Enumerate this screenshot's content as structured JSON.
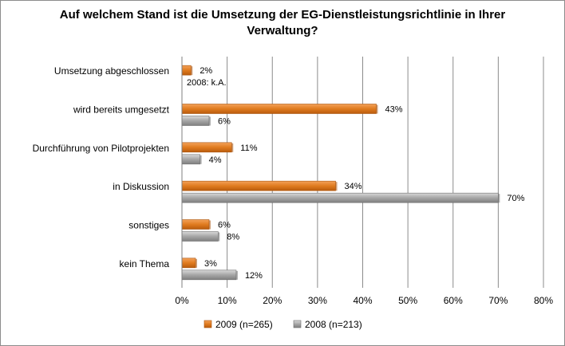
{
  "chart_data": {
    "type": "bar",
    "orientation": "horizontal",
    "title_lines": [
      "Auf welchem Stand ist die Umsetzung der EG-Dienstleistungsrichtlinie in Ihrer",
      "Verwaltung?"
    ],
    "categories": [
      "Umsetzung abgeschlossen",
      "wird bereits umgesetzt",
      "Durchführung von Pilotprojekten",
      "in Diskussion",
      "sonstiges",
      "kein Thema"
    ],
    "series": [
      {
        "name": "2009 (n=265)",
        "color": "#e07b1f",
        "values": [
          2,
          43,
          11,
          34,
          6,
          3
        ],
        "labels": [
          "2%",
          "43%",
          "11%",
          "34%",
          "6%",
          "3%"
        ]
      },
      {
        "name": "2008 (n=213)",
        "color": "#a6a6a6",
        "values": [
          null,
          6,
          4,
          70,
          8,
          12
        ],
        "labels": [
          "2008: k.A.",
          "6%",
          "4%",
          "70%",
          "8%",
          "12%"
        ]
      }
    ],
    "xlim": [
      0,
      80
    ],
    "xticks": [
      0,
      10,
      20,
      30,
      40,
      50,
      60,
      70,
      80
    ],
    "xtick_labels": [
      "0%",
      "10%",
      "20%",
      "30%",
      "40%",
      "50%",
      "60%",
      "70%",
      "80%"
    ],
    "grid": true,
    "legend_position": "bottom"
  }
}
